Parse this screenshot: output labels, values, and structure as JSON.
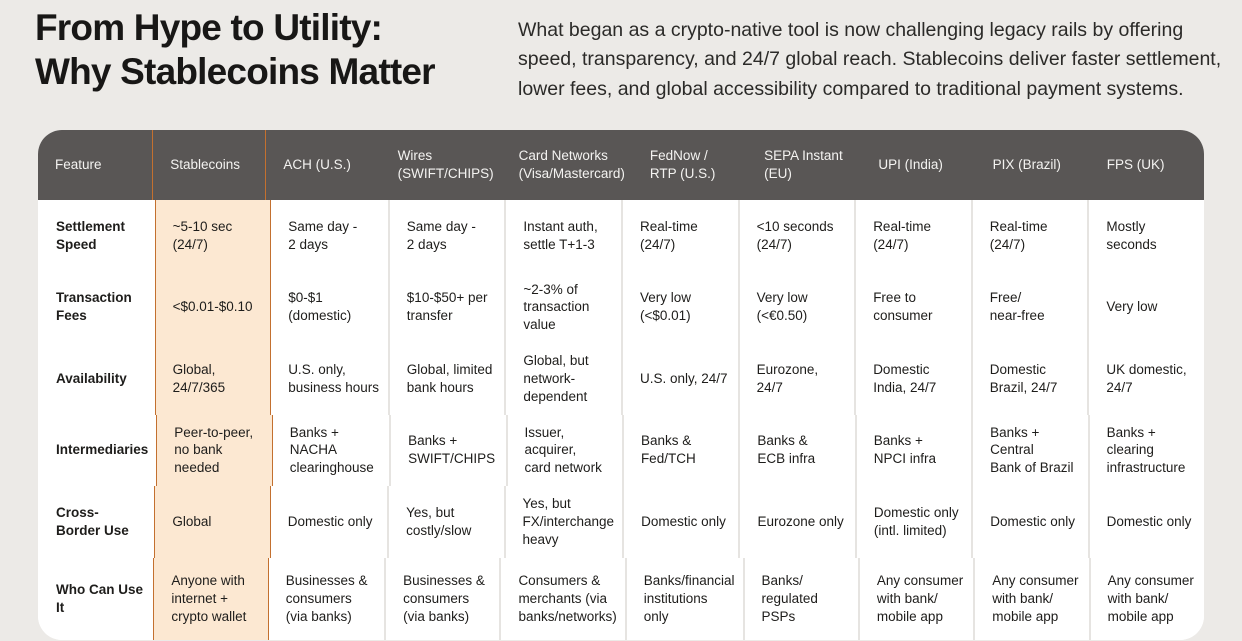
{
  "header": {
    "title_line1": "From Hype to Utility:",
    "title_line2": "Why Stablecoins Matter",
    "subtitle": "What began as a crypto-native tool is now challenging legacy rails by offering speed, transparency, and 24/7 global reach. Stablecoins deliver faster settlement, lower fees, and global accessibility compared to traditional payment systems."
  },
  "colors": {
    "page_bg": "#ECEAE7",
    "table_header_bg": "#595655",
    "table_header_text": "#F4F3F1",
    "body_bg": "#FFFFFF",
    "highlight_bg": "#FCE8D2",
    "highlight_border": "#C3702F",
    "divider": "#E6E4E1",
    "text": "#1E1D1B"
  },
  "table": {
    "highlight_column_index": 1,
    "columns": [
      "Feature",
      "Stablecoins",
      "ACH (U.S.)",
      "Wires\n(SWIFT/CHIPS)",
      "Card Networks\n(Visa/Mastercard)",
      "FedNow /\nRTP (U.S.)",
      "SEPA Instant\n(EU)",
      "UPI (India)",
      "PIX (Brazil)",
      "FPS (UK)"
    ],
    "rows": [
      {
        "feature": "Settlement\nSpeed",
        "cells": [
          "~5-10 sec (24/7)",
          "Same day -\n2 days",
          "Same day -\n2 days",
          "Instant auth,\nsettle T+1-3",
          "Real-time\n(24/7)",
          "<10 seconds\n(24/7)",
          "Real-time\n(24/7)",
          "Real-time\n(24/7)",
          "Mostly seconds"
        ]
      },
      {
        "feature": "Transaction\nFees",
        "cells": [
          "<$0.01-$0.10",
          "$0-$1\n(domestic)",
          "$10-$50+ per\ntransfer",
          "~2-3% of\ntransaction value",
          "Very low\n(<$0.01)",
          "Very low\n(<€0.50)",
          "Free to\nconsumer",
          "Free/\nnear-free",
          "Very low"
        ]
      },
      {
        "feature": "Availability",
        "cells": [
          "Global, 24/7/365",
          "U.S. only,\nbusiness hours",
          "Global, limited\nbank hours",
          "Global, but\nnetwork-dependent",
          "U.S. only, 24/7",
          "Eurozone,\n24/7",
          "Domestic\nIndia, 24/7",
          "Domestic\nBrazil, 24/7",
          "UK domestic,\n24/7"
        ]
      },
      {
        "feature": "Intermediaries",
        "cells": [
          "Peer-to-peer,\nno bank needed",
          "Banks + NACHA\nclearinghouse",
          "Banks +\nSWIFT/CHIPS",
          "Issuer, acquirer,\ncard network",
          "Banks &\nFed/TCH",
          "Banks &\nECB infra",
          "Banks +\nNPCI infra",
          "Banks + Central\nBank of Brazil",
          "Banks + clearing\ninfrastructure"
        ]
      },
      {
        "feature": "Cross-\nBorder Use",
        "cells": [
          "Global",
          "Domestic only",
          "Yes, but\ncostly/slow",
          "Yes, but\nFX/interchange\nheavy",
          "Domestic only",
          "Eurozone only",
          "Domestic only\n(intl. limited)",
          "Domestic only",
          "Domestic only"
        ]
      },
      {
        "feature": "Who Can Use It",
        "cells": [
          "Anyone with\ninternet +\ncrypto wallet",
          "Businesses &\nconsumers\n(via banks)",
          "Businesses &\nconsumers\n(via banks)",
          "Consumers &\nmerchants (via\nbanks/networks)",
          "Banks/financial\ninstitutions only",
          "Banks/\nregulated PSPs",
          "Any consumer\nwith bank/\nmobile app",
          "Any consumer\nwith bank/\nmobile app",
          "Any consumer\nwith bank/\nmobile app"
        ]
      }
    ]
  }
}
